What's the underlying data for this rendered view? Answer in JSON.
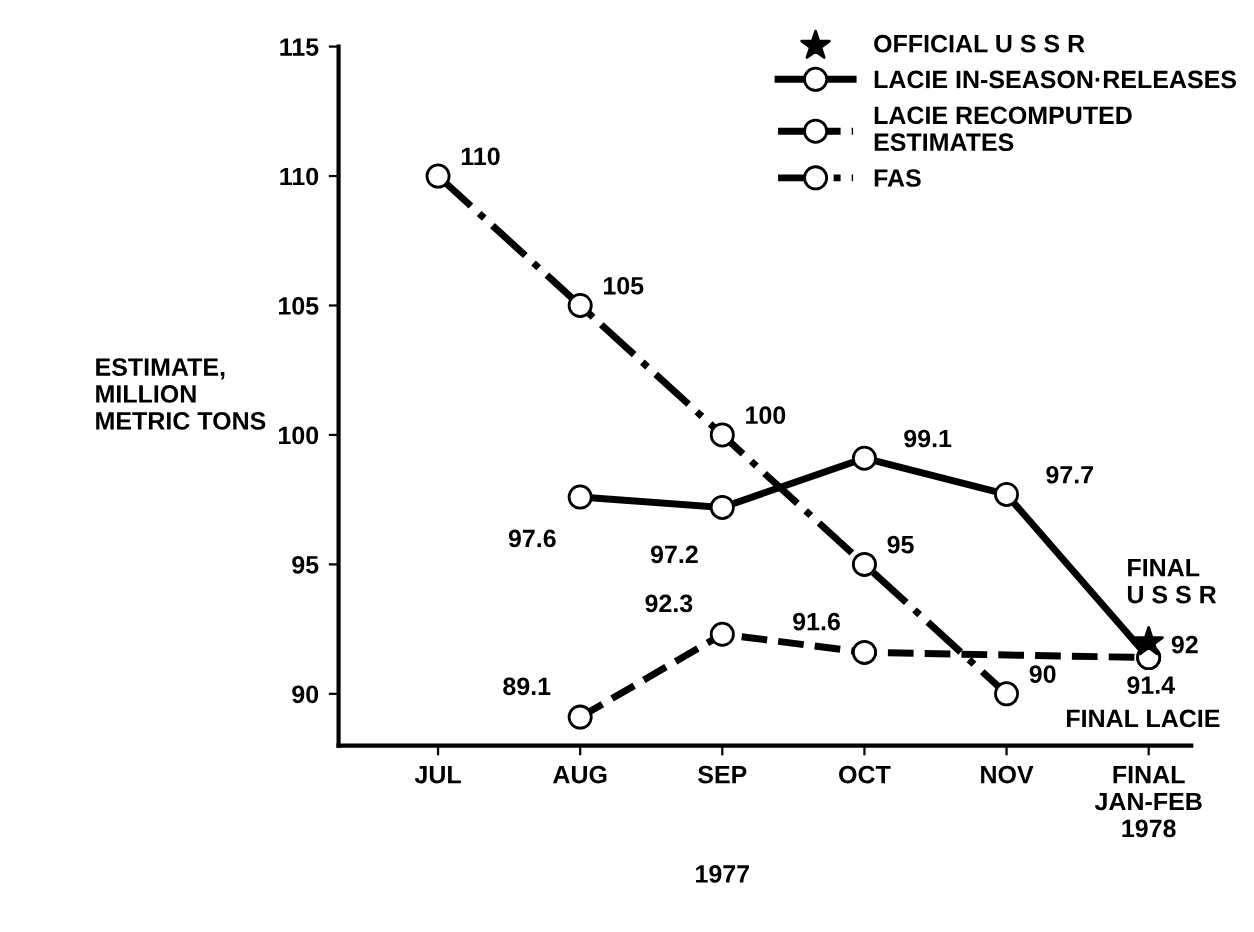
{
  "chart_data": {
    "type": "line",
    "ylabel": "ESTIMATE,\nMILLION\nMETRIC TONS",
    "xlabel": "1977",
    "categories": [
      "JUL",
      "AUG",
      "SEP",
      "OCT",
      "NOV",
      "FINAL\nJAN-FEB\n1978"
    ],
    "ylim": [
      88,
      115
    ],
    "yticks": [
      90,
      95,
      100,
      105,
      110,
      115
    ],
    "grid": false,
    "legend": "top right",
    "series": [
      {
        "name": "OFFICIAL U S S R",
        "type": "scatter",
        "marker": "star",
        "color": "#000000",
        "values": [
          null,
          null,
          null,
          null,
          null,
          92
        ],
        "value_labels": [
          null,
          null,
          null,
          null,
          null,
          "92"
        ]
      },
      {
        "name": "LACIE IN-SEASON·RELEASES",
        "color": "#000000",
        "line_style": "solid",
        "marker": "circle",
        "values": [
          null,
          97.6,
          97.2,
          99.1,
          97.7,
          91.4
        ],
        "value_labels": [
          null,
          "97.6",
          "97.2",
          "99.1",
          "97.7",
          null
        ]
      },
      {
        "name": "LACIE RECOMPUTED\nESTIMATES",
        "color": "#000000",
        "line_style": "dashed",
        "marker": "circle",
        "values": [
          null,
          89.1,
          92.3,
          91.6,
          null,
          91.4
        ],
        "value_labels": [
          null,
          "89.1",
          "92.3",
          "91.6",
          null,
          "91.4"
        ]
      },
      {
        "name": "FAS",
        "color": "#000000",
        "line_style": "dashdot",
        "marker": "circle",
        "values": [
          110,
          105,
          100,
          95,
          90,
          null
        ],
        "value_labels": [
          "110",
          "105",
          "100",
          "95",
          "90",
          null
        ]
      }
    ],
    "annotations": [
      {
        "text": "FINAL\nU S S R",
        "x": "FINAL\nJAN-FEB\n1978",
        "y": 92
      },
      {
        "text": "FINAL LACIE",
        "x": "FINAL\nJAN-FEB\n1978",
        "y": 91.4
      }
    ]
  }
}
